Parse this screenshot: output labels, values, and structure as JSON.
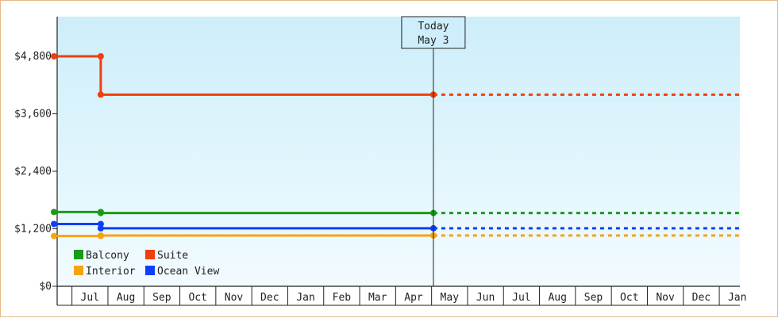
{
  "chart_data": {
    "type": "line",
    "step": true,
    "ylim": [
      0,
      5600
    ],
    "y_ticks": [
      {
        "value": 0,
        "label": "$0"
      },
      {
        "value": 1200,
        "label": "$1,200"
      },
      {
        "value": 2400,
        "label": "$2,400"
      },
      {
        "value": 3600,
        "label": "$3,600"
      },
      {
        "value": 4800,
        "label": "$4,800"
      }
    ],
    "x_ticks": [
      "Jul",
      "Aug",
      "Sep",
      "Oct",
      "Nov",
      "Dec",
      "Jan",
      "Feb",
      "Mar",
      "Apr",
      "May",
      "Jun",
      "Jul",
      "Aug",
      "Sep",
      "Oct",
      "Nov",
      "Dec",
      "Jan"
    ],
    "today": {
      "line1": "Today",
      "line2": "May 3",
      "x": 10.55
    },
    "series": [
      {
        "name": "Balcony",
        "color": "#179c17",
        "x": [
          0,
          1.3,
          1.3,
          10.55
        ],
        "values": [
          1550,
          1550,
          1530,
          1530
        ],
        "forecast_value": 1530
      },
      {
        "name": "Suite",
        "color": "#f13e0e",
        "x": [
          0,
          1.3,
          1.3,
          10.55
        ],
        "values": [
          4800,
          4800,
          4000,
          4000
        ],
        "forecast_value": 4000
      },
      {
        "name": "Interior",
        "color": "#f5a40f",
        "x": [
          0,
          1.3,
          1.3,
          10.55
        ],
        "values": [
          1050,
          1050,
          1060,
          1060
        ],
        "forecast_value": 1060
      },
      {
        "name": "Ocean View",
        "color": "#0d3ffa",
        "x": [
          0,
          1.3,
          1.3,
          10.55
        ],
        "values": [
          1300,
          1300,
          1210,
          1210
        ],
        "forecast_value": 1210
      }
    ],
    "legend_order": [
      "Balcony",
      "Suite",
      "Interior",
      "Ocean View"
    ],
    "legend_position": "bottom-left",
    "grid": false,
    "background": {
      "top": "#cdeefa",
      "bottom": "#f2fbff"
    }
  }
}
